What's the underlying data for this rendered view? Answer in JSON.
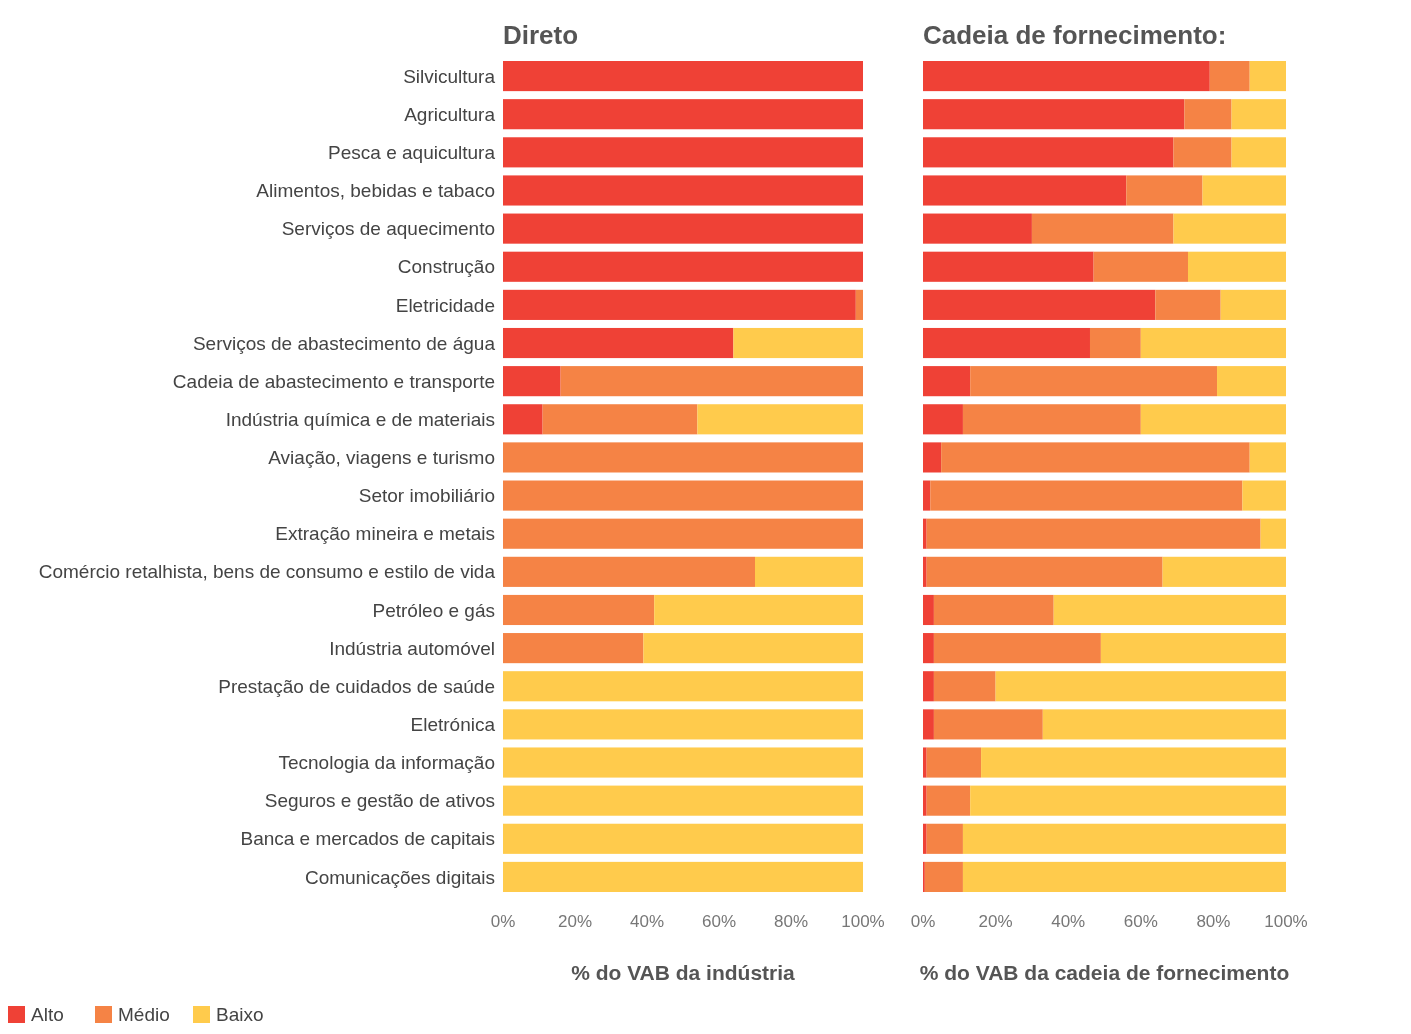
{
  "chart_data": [
    {
      "type": "bar",
      "orientation": "horizontal",
      "stacked": true,
      "title": "Direto",
      "xlabel": "% do VAB da indústria",
      "legend": "bottom",
      "categories": [
        "Silvicultura",
        "Agricultura",
        "Pesca e aquicultura",
        "Alimentos, bebidas e tabaco",
        "Serviços de aquecimento",
        "Construção",
        "Eletricidade",
        "Serviços de abastecimento de água",
        "Cadeia de abastecimento e transporte",
        "Indústria química e de materiais",
        "Aviação, viagens e turismo",
        "Setor imobiliário",
        "Extração mineira e metais",
        "Comércio retalhista, bens de consumo e estilo de vida",
        "Petróleo e gás",
        "Indústria automóvel",
        "Prestação de cuidados de saúde",
        "Eletrónica",
        "Tecnologia da informação",
        "Seguros e gestão de ativos",
        "Banca e mercados de capitais",
        "Comunicações digitais"
      ],
      "xlim": [
        0,
        100
      ],
      "xticks": [
        {
          "value": 0,
          "label": "0%"
        },
        {
          "value": 20,
          "label": "20%"
        },
        {
          "value": 40,
          "label": "40%"
        },
        {
          "value": 60,
          "label": "60%"
        },
        {
          "value": 80,
          "label": "80%"
        },
        {
          "value": 100,
          "label": "100%"
        }
      ],
      "series": [
        {
          "name": "Alto",
          "color": "#ef4136",
          "values": [
            100,
            100,
            100,
            100,
            100,
            100,
            98,
            64,
            16,
            11,
            0,
            0,
            0,
            0,
            0,
            0,
            0,
            0,
            0,
            0,
            0,
            0
          ]
        },
        {
          "name": "Médio",
          "color": "#f58345",
          "values": [
            0,
            0,
            0,
            0,
            0,
            0,
            2,
            0,
            84,
            43,
            100,
            100,
            100,
            70,
            42,
            39,
            0,
            0,
            0,
            0,
            0,
            0
          ]
        },
        {
          "name": "Baixo",
          "color": "#ffcb4c",
          "values": [
            0,
            0,
            0,
            0,
            0,
            0,
            0,
            36,
            0,
            46,
            0,
            0,
            0,
            30,
            58,
            61,
            100,
            100,
            100,
            100,
            100,
            100
          ]
        }
      ]
    },
    {
      "type": "bar",
      "orientation": "horizontal",
      "stacked": true,
      "title": "Cadeia de fornecimento:",
      "xlabel": "% do VAB da cadeia de fornecimento",
      "tick_labels": "x",
      "categories": [
        null,
        null,
        null,
        null,
        null,
        null,
        null,
        null,
        null,
        null,
        null,
        null,
        null,
        null,
        null,
        null,
        null,
        null,
        null,
        null,
        null,
        null
      ],
      "xlim": [
        0,
        100
      ],
      "xticks": [
        {
          "value": 0,
          "label": "0%"
        },
        {
          "value": 20,
          "label": "20%"
        },
        {
          "value": 40,
          "label": "40%"
        },
        {
          "value": 60,
          "label": "60%"
        },
        {
          "value": 80,
          "label": "80%"
        },
        {
          "value": 100,
          "label": "100%"
        }
      ],
      "series": [
        {
          "color": "#ef4136",
          "values": [
            79,
            72,
            69,
            56,
            30,
            47,
            64,
            46,
            13,
            11,
            5,
            2,
            1,
            1,
            3,
            3,
            3,
            3,
            1,
            1,
            1,
            0.5
          ]
        },
        {
          "color": "#f58345",
          "values": [
            11,
            13,
            16,
            21,
            39,
            26,
            18,
            14,
            68,
            49,
            85,
            86,
            92,
            65,
            33,
            46,
            17,
            30,
            15,
            12,
            10,
            10.5
          ]
        },
        {
          "color": "#ffcb4c",
          "values": [
            10,
            15,
            15,
            23,
            31,
            27,
            18,
            40,
            19,
            40,
            10,
            12,
            7,
            34,
            64,
            51,
            80,
            67,
            84,
            87,
            89,
            89
          ]
        }
      ]
    }
  ]
}
